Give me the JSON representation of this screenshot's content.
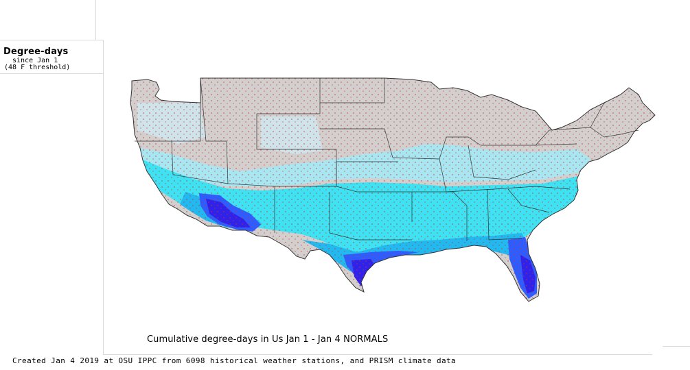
{
  "legend": {
    "title": "Degree-days",
    "since": "since Jan 1",
    "threshold": "(48 F threshold)"
  },
  "map": {
    "title": "Cumulative degree-days in Us  Jan 1 - Jan 4 NORMALS",
    "region": "Contiguous United States",
    "colors": {
      "zero": "#d4cfcf",
      "cold_light": "#cfe3ea",
      "low": "#a8e6f2",
      "mid": "#3ee2f2",
      "high": "#22b8f0",
      "very_high": "#2e5cff",
      "max": "#3022e8",
      "state_borders": "#333333",
      "station_dots": "#c0392b"
    }
  },
  "footer": "Created Jan 4 2019 at OSU IPPC from 6098 historical weather stations, and PRISM climate data"
}
